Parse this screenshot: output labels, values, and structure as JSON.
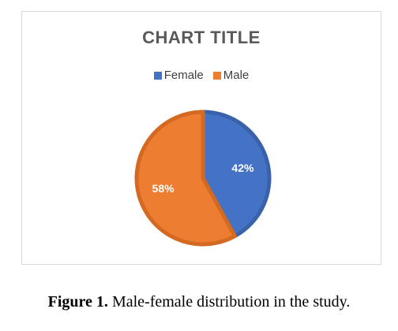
{
  "chart_data": {
    "type": "pie",
    "title": "CHART TITLE",
    "categories": [
      "Female",
      "Male"
    ],
    "values": [
      42,
      58
    ],
    "data_labels": [
      "42%",
      "58%"
    ],
    "colors": [
      "#4472c4",
      "#ed7d31"
    ],
    "legend_position": "top"
  },
  "caption": {
    "label": "Figure 1.",
    "text": " Male-female distribution in the study."
  }
}
